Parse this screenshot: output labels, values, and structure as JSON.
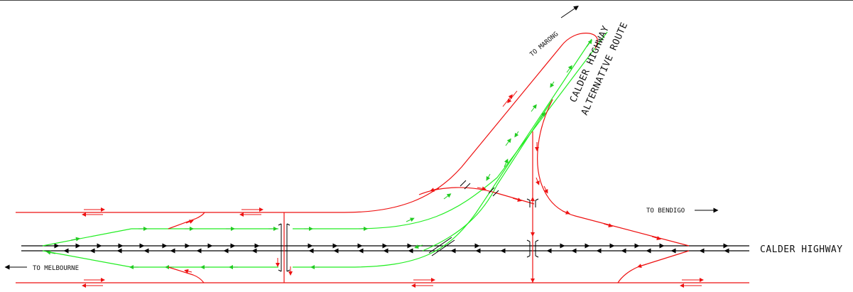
{
  "labels": {
    "to_marong": "TO MARONG",
    "alt_route_line1": "CALDER HIGHWAY",
    "alt_route_line2": "ALTERNATIVE ROUTE",
    "to_bendigo": "TO BENDIGO",
    "calder_highway": "CALDER HIGHWAY",
    "to_melbourne": "TO MELBOURNE"
  },
  "colors": {
    "highway": "#000000",
    "ramp": "#22ee22",
    "local_road": "#ee1111",
    "border": "#444444"
  }
}
